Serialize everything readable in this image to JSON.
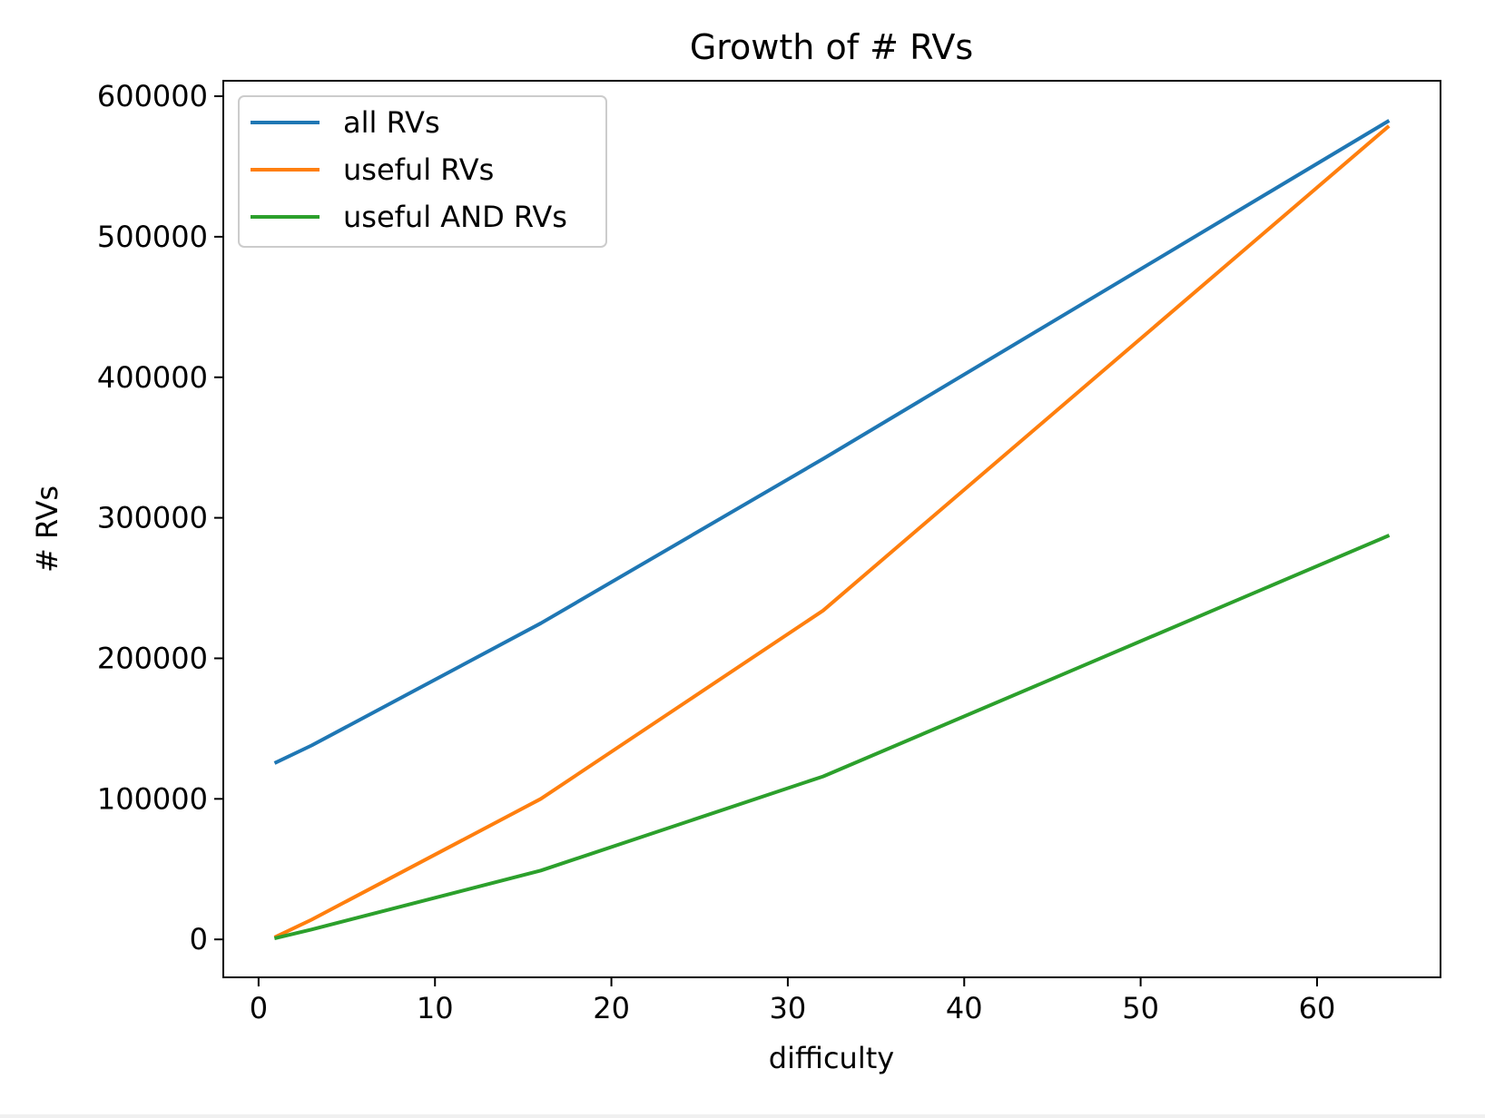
{
  "chart_data": {
    "type": "line",
    "title": "Growth of # RVs",
    "xlabel": "difficulty",
    "ylabel": "# RVs",
    "xlim": [
      -2,
      67
    ],
    "ylim": [
      -27000,
      611000
    ],
    "xticks": [
      0,
      10,
      20,
      30,
      40,
      50,
      60
    ],
    "yticks": [
      0,
      100000,
      200000,
      300000,
      400000,
      500000,
      600000
    ],
    "grid": false,
    "legend_position": "top-left",
    "x": [
      1,
      3,
      16,
      32,
      64
    ],
    "series": [
      {
        "name": "all RVs",
        "color": "#1f77b4",
        "values": [
          126000,
          138000,
          225000,
          342000,
          582000
        ]
      },
      {
        "name": "useful RVs",
        "color": "#ff7f0e",
        "values": [
          2000,
          14000,
          100000,
          234000,
          578000
        ]
      },
      {
        "name": "useful AND RVs",
        "color": "#2ca02c",
        "values": [
          1000,
          7000,
          49000,
          116000,
          287000
        ]
      }
    ]
  }
}
